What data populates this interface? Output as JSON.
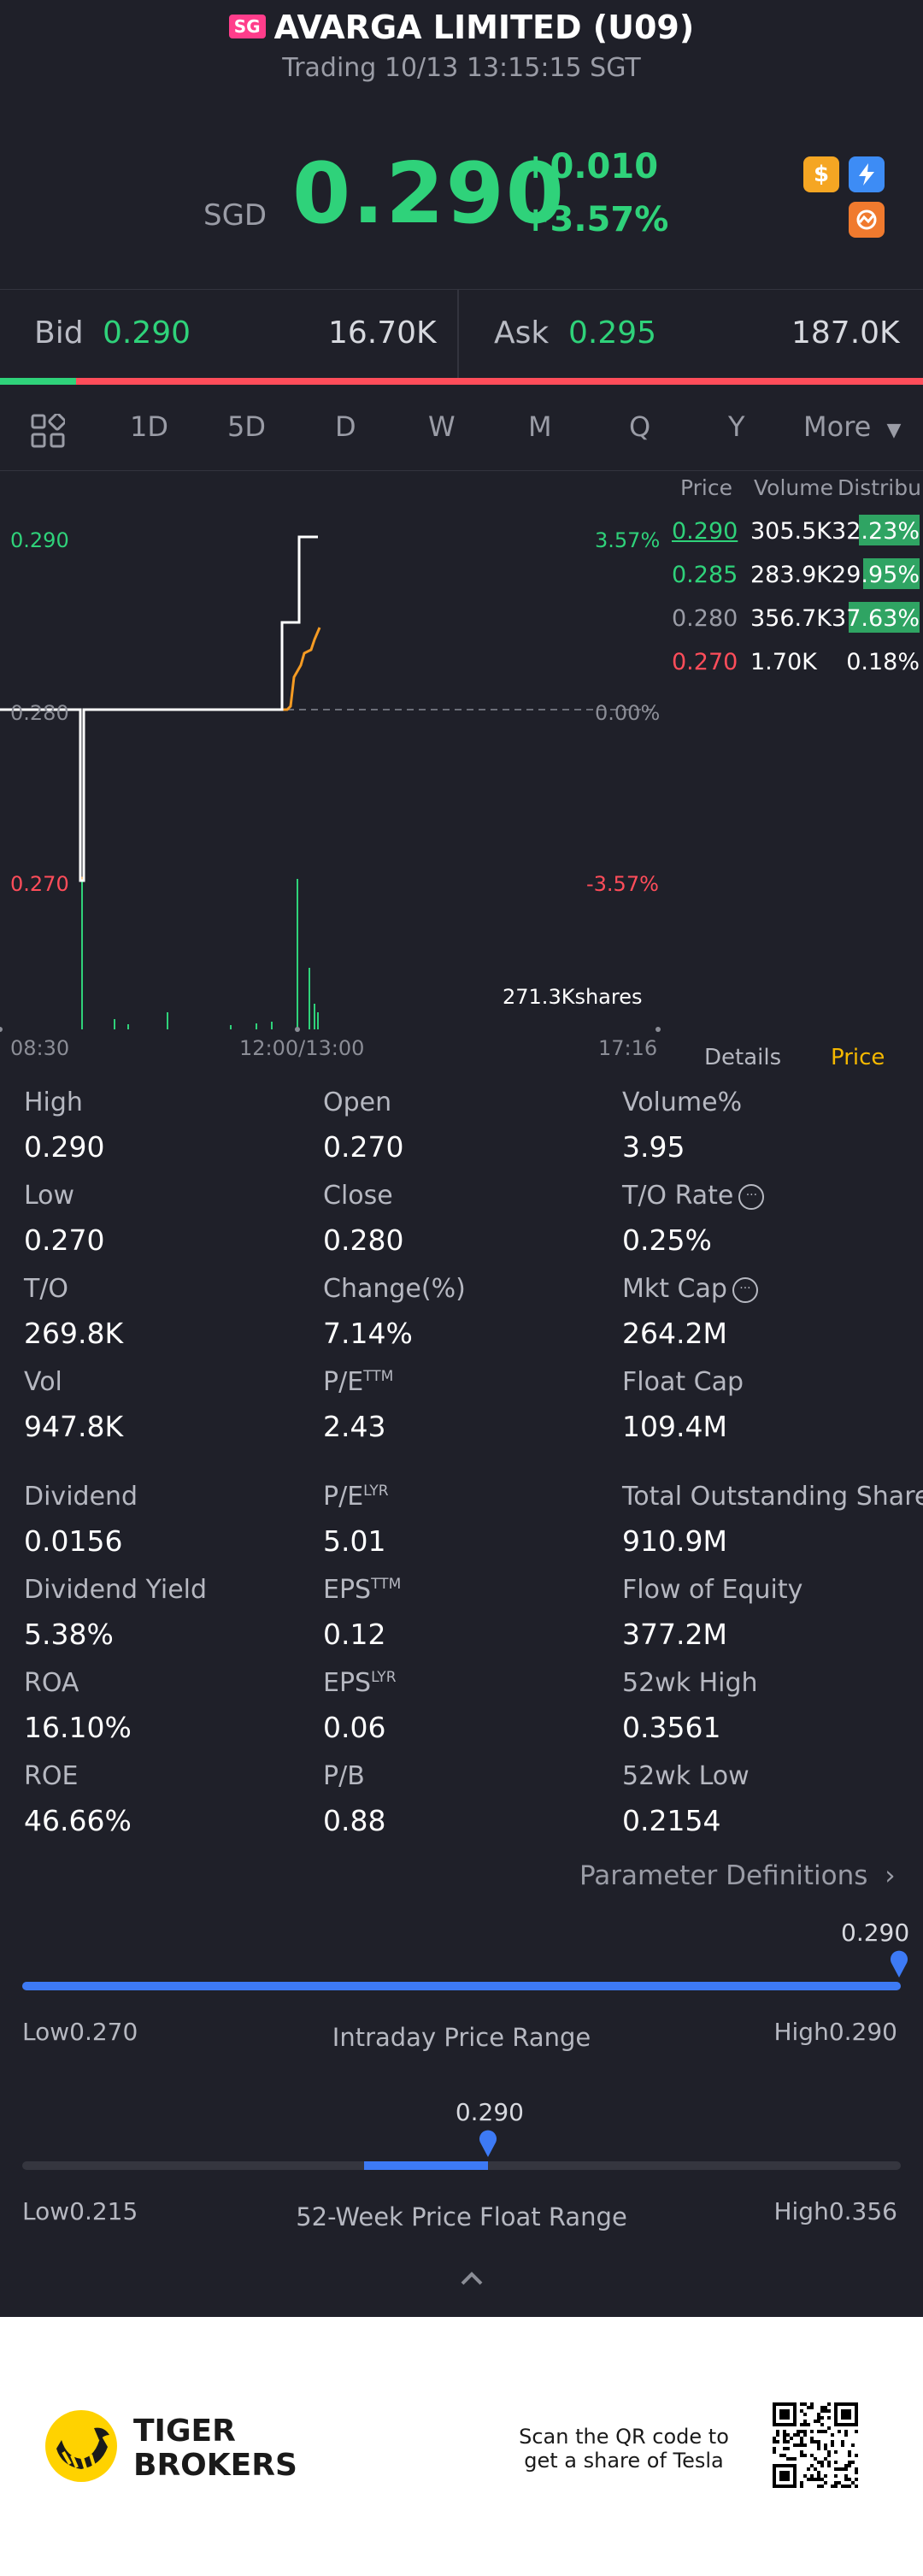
{
  "header": {
    "badge": "SG",
    "title": "AVARGA LIMITED (U09)",
    "subtitle": "Trading 10/13 13:15:15 SGT",
    "currency": "SGD",
    "price": "0.290",
    "change": "+0.010",
    "change_pct": "+3.57%",
    "icons": [
      "dollar-icon",
      "lightning-icon",
      "pattern-icon"
    ]
  },
  "bidask": {
    "bid_label": "Bid",
    "bid_price": "0.290",
    "bid_size": "16.70K",
    "ask_label": "Ask",
    "ask_price": "0.295",
    "ask_size": "187.0K",
    "bid_fraction": 0.082
  },
  "tabs": {
    "items": [
      "1D",
      "5D",
      "D",
      "W",
      "M",
      "Q",
      "Y"
    ],
    "more": "More",
    "active": "1D"
  },
  "chart": {
    "y_left": [
      "0.290",
      "0.280",
      "0.270"
    ],
    "y_right": [
      "3.57%",
      "0.00%",
      "-3.57%"
    ],
    "x_labels": [
      "08:30",
      "12:00/13:00",
      "17:16"
    ],
    "volume_label": "271.3Kshares",
    "tab_details": "Details",
    "tab_price": "Price"
  },
  "chart_data": {
    "type": "line",
    "series": [],
    "y_ticks": [
      "0.290",
      "0.280",
      "0.270"
    ],
    "ylim": [
      0.27,
      0.29
    ],
    "reference": 0.28,
    "x_ticks": [
      "08:30",
      "12:00/13:00",
      "17:16"
    ],
    "volume_label": "271.3Kshares"
  },
  "orderbook": {
    "headers": [
      "Price",
      "Volume",
      "Distribu"
    ],
    "rows": [
      {
        "price": "0.290",
        "volume": "305.5K",
        "dist": "32.23%",
        "color": "#2fd27a",
        "fill": 0.3223
      },
      {
        "price": "0.285",
        "volume": "283.9K",
        "dist": "29.95%",
        "color": "#2fd27a",
        "fill": 0.2995
      },
      {
        "price": "0.280",
        "volume": "356.7K",
        "dist": "37.63%",
        "color": "#9a9ca6",
        "fill": 0.3763
      },
      {
        "price": "0.270",
        "volume": "1.70K",
        "dist": "0.18%",
        "color": "#ff4d5a",
        "fill": 0.0018
      }
    ]
  },
  "stats": {
    "col1": [
      {
        "label": "High",
        "value": "0.290"
      },
      {
        "label": "Low",
        "value": "0.270"
      },
      {
        "label": "T/O",
        "value": "269.8K"
      },
      {
        "label": "Vol",
        "value": "947.8K"
      },
      {
        "label": "Dividend",
        "value": "0.0156"
      },
      {
        "label": "Dividend Yield",
        "value": "5.38%"
      },
      {
        "label": "ROA",
        "value": "16.10%"
      },
      {
        "label": "ROE",
        "value": "46.66%"
      }
    ],
    "col2": [
      {
        "label": "Open",
        "value": "0.270",
        "sup": ""
      },
      {
        "label": "Close",
        "value": "0.280",
        "sup": ""
      },
      {
        "label": "Change(%)",
        "value": "7.14%",
        "sup": ""
      },
      {
        "label": "P/E",
        "value": "2.43",
        "sup": "TTM"
      },
      {
        "label": "P/E",
        "value": "5.01",
        "sup": "LYR"
      },
      {
        "label": "EPS",
        "value": "0.12",
        "sup": "TTM"
      },
      {
        "label": "EPS",
        "value": "0.06",
        "sup": "LYR"
      },
      {
        "label": "P/B",
        "value": "0.88",
        "sup": ""
      }
    ],
    "col3": [
      {
        "label": "Volume%",
        "value": "3.95"
      },
      {
        "label": "T/O Rate",
        "value": "0.25%"
      },
      {
        "label": "Mkt Cap",
        "value": "264.2M"
      },
      {
        "label": "Float Cap",
        "value": "109.4M"
      },
      {
        "label": "Total Outstanding Shares",
        "value": "910.9M"
      },
      {
        "label": "Flow of Equity",
        "value": "377.2M"
      },
      {
        "label": "52wk High",
        "value": "0.3561"
      },
      {
        "label": "52wk Low",
        "value": "0.2154"
      }
    ],
    "param_link": "Parameter Definitions"
  },
  "ranges": {
    "intraday": {
      "title": "Intraday Price Range",
      "current": "0.290",
      "low_label": "Low",
      "low": "0.270",
      "high_label": "High",
      "high": "0.290",
      "position": 1.0
    },
    "week52": {
      "title": "52-Week Price Float Range",
      "current": "0.290",
      "low_label": "Low",
      "low": "0.215",
      "high_label": "High",
      "high": "0.356",
      "position": 0.53
    }
  },
  "footer": {
    "brand1": "TIGER",
    "brand2": "BROKERS",
    "qr_text1": "Scan the QR code to",
    "qr_text2": "get a share of Tesla"
  },
  "colors": {
    "background": "#1f2029",
    "green": "#2fd27a",
    "red": "#ff4d5a",
    "accent_blue": "#3d7af5",
    "gold": "#f5b800"
  }
}
